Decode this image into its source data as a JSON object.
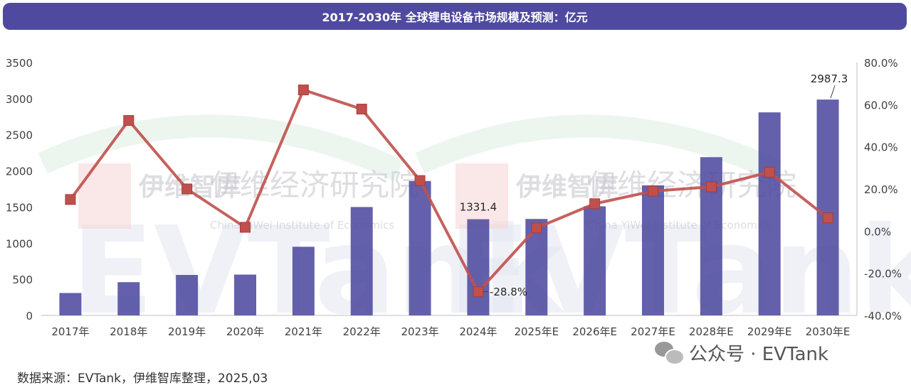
{
  "title": "2017-2030年 全球锂电设备市场规模及预测：亿元",
  "source": "数据来源：EVTank，伊维智库整理，2025,03",
  "wechat_label": "公众号 · EVTank",
  "watermark": {
    "logo_text": "EVTank",
    "brand_cn": "伊维经济研究院",
    "brand_short": "伊维智库",
    "brand_en": "China YiWei Institute of Economics"
  },
  "colors": {
    "bar": "#4f4a9f",
    "line": "#c0504d",
    "title_bg": "#4f4a9f"
  },
  "chart_data": {
    "type": "bar",
    "categories": [
      "2017年",
      "2018年",
      "2019年",
      "2020年",
      "2021年",
      "2022年",
      "2023年",
      "2024年",
      "2025年E",
      "2026年E",
      "2027年E",
      "2028年E",
      "2029年E",
      "2030年E"
    ],
    "series": [
      {
        "axis": "left",
        "type": "bar",
        "values": [
          310,
          460,
          560,
          565,
          950,
          1500,
          1860,
          1331.4,
          1335,
          1510,
          1800,
          2190,
          2810,
          2987.3
        ]
      },
      {
        "axis": "right",
        "type": "line",
        "values": [
          15.0,
          52.5,
          20.0,
          1.8,
          67.0,
          57.9,
          24.0,
          -28.8,
          1.5,
          13.0,
          19.0,
          21.0,
          28.0,
          6.3
        ]
      }
    ],
    "data_labels": [
      {
        "series": 0,
        "index": 7,
        "text": "1331.4"
      },
      {
        "series": 0,
        "index": 13,
        "text": "2987.3"
      },
      {
        "series": 1,
        "index": 7,
        "text": "-28.8%"
      }
    ],
    "ylim": [
      0,
      3500
    ],
    "yticks": [
      "0",
      "500",
      "1000",
      "1500",
      "2000",
      "2500",
      "3000",
      "3500"
    ],
    "y2lim": [
      -40,
      80
    ],
    "y2ticks": [
      "-40.0%",
      "-20.0%",
      "0.0%",
      "20.0%",
      "40.0%",
      "60.0%",
      "80.0%"
    ],
    "grid": false,
    "legend": "none"
  }
}
